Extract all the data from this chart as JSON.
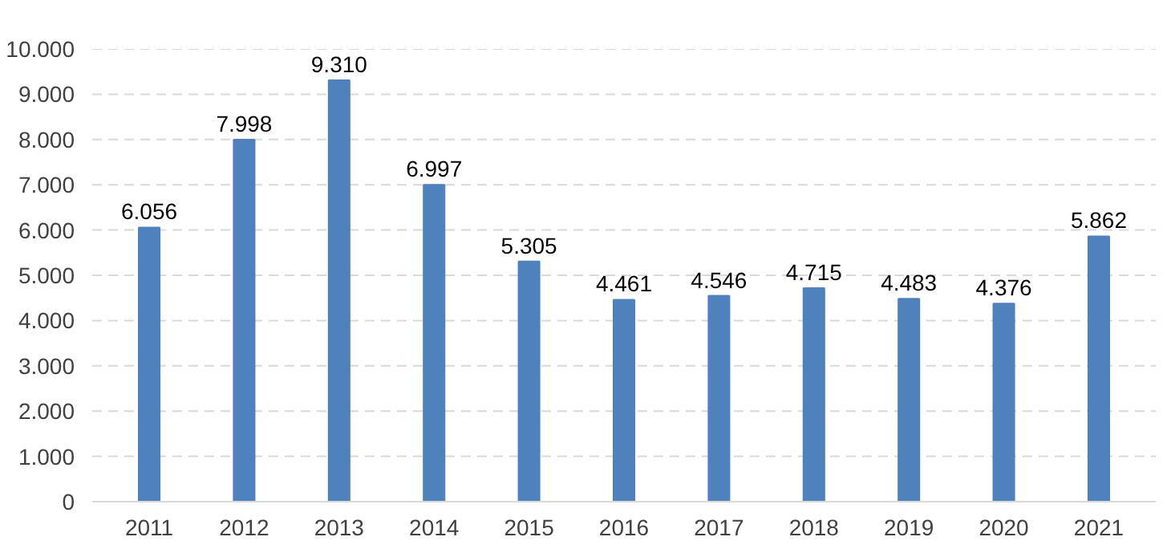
{
  "chart_data": {
    "type": "bar",
    "categories": [
      "2011",
      "2012",
      "2013",
      "2014",
      "2015",
      "2016",
      "2017",
      "2018",
      "2019",
      "2020",
      "2021"
    ],
    "series": [
      {
        "color": "#4f81bd",
        "values": [
          6056,
          7998,
          9310,
          6997,
          5305,
          4461,
          4546,
          4715,
          4483,
          4376,
          5862
        ],
        "value_labels": [
          "6.056",
          "7.998",
          "9.310",
          "6.997",
          "5.305",
          "4.461",
          "4.546",
          "4.715",
          "4.483",
          "4.376",
          "5.862"
        ]
      }
    ],
    "ylim": [
      0,
      10000
    ],
    "yticks": [
      0,
      {
        "value": 1000,
        "label": "1.000"
      },
      {
        "value": 2000,
        "label": "2.000"
      },
      {
        "value": 3000,
        "label": "3.000"
      },
      {
        "value": 4000,
        "label": "4.000"
      },
      {
        "value": 5000,
        "label": "5.000"
      },
      {
        "value": 6000,
        "label": "6.000"
      },
      {
        "value": 7000,
        "label": "7.000"
      },
      {
        "value": 8000,
        "label": "8.000"
      },
      {
        "value": 9000,
        "label": "9.000"
      },
      {
        "value": 10000,
        "label": "10.000"
      }
    ],
    "grid": "y"
  }
}
